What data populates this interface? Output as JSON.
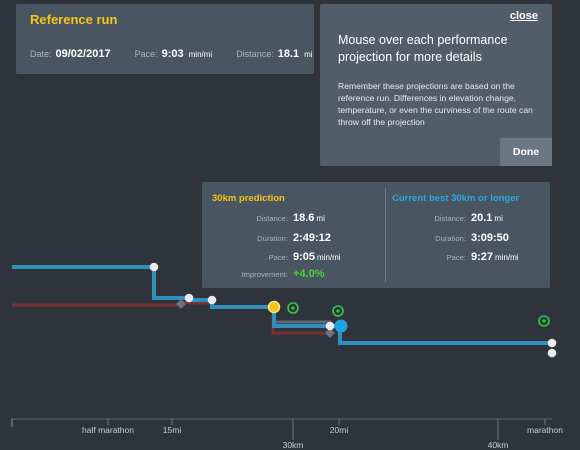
{
  "reference_run": {
    "title": "Reference run",
    "date_label": "Date:",
    "date_value": "09/02/2017",
    "pace_label": "Pace:",
    "pace_value": "9:03",
    "pace_unit": "min/mi",
    "distance_label": "Distance:",
    "distance_value": "18.1",
    "distance_unit": "mi"
  },
  "help": {
    "close_label": "close",
    "heading": "Mouse over each performance projection for more details",
    "body": "Remember these projections are based on the reference run. Differences in elevation change, temperature, or even the curviness of the route can throw off the projection",
    "done_label": "Done"
  },
  "prediction": {
    "title": "30km prediction",
    "distance_label": "Distance:",
    "distance_value": "18.6",
    "distance_unit": "mi",
    "duration_label": "Duration:",
    "duration_value": "2:49:12",
    "pace_label": "Pace:",
    "pace_value": "9:05",
    "pace_unit": "min/mi",
    "improvement_label": "Improvement:",
    "improvement_value": "+4.0%"
  },
  "current_best": {
    "title": "Current best 30km or longer",
    "distance_label": "Distance:",
    "distance_value": "20.1",
    "distance_unit": "mi",
    "duration_label": "Duration:",
    "duration_value": "3:09:50",
    "pace_label": "Pace:",
    "pace_value": "9:27",
    "pace_unit": "min/mi"
  },
  "axis": {
    "ticks": [
      {
        "label": "half marathon",
        "row": "top"
      },
      {
        "label": "15mi",
        "row": "top"
      },
      {
        "label": "30km",
        "row": "bottom"
      },
      {
        "label": "20mi",
        "row": "top"
      },
      {
        "label": "40km",
        "row": "bottom"
      },
      {
        "label": "marathon",
        "row": "top"
      }
    ]
  },
  "colors": {
    "background": "#2e333c",
    "prediction_line": "#2f8fbd",
    "reference_line": "#7a3134",
    "highlight_yellow": "#f5c518",
    "highlight_blue": "#1fa3e0",
    "marker_green": "#2ecc40"
  }
}
